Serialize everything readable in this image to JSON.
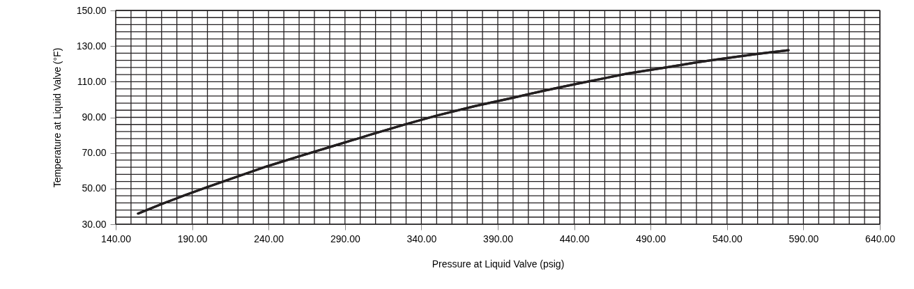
{
  "chart_data": {
    "type": "line",
    "xlabel": "Pressure at Liquid Valve (psig)",
    "ylabel": "Temperature at Liquid Valve (°F)",
    "x": [
      154.6,
      170,
      185,
      199.8,
      220,
      239,
      260,
      285,
      306.1,
      330,
      350,
      375,
      400,
      420,
      440,
      460,
      474.9,
      500,
      520,
      540.1,
      560,
      580.2
    ],
    "series": [
      {
        "color": "#231f20",
        "values": [
          36.0,
          41.3,
          46.2,
          50.8,
          56.9,
          62.5,
          68.1,
          74.6,
          80.1,
          86.2,
          91.0,
          96.3,
          101.0,
          104.9,
          108.5,
          112.0,
          114.6,
          118.0,
          120.8,
          123.3,
          125.6,
          127.7
        ]
      }
    ],
    "xlim": [
      140,
      640
    ],
    "xticks": [
      {
        "value": 140,
        "label": "140.00"
      },
      {
        "value": 150,
        "label": null
      },
      {
        "value": 160,
        "label": null
      },
      {
        "value": 170,
        "label": null
      },
      {
        "value": 180,
        "label": null
      },
      {
        "value": 190,
        "label": "190.00"
      },
      {
        "value": 200,
        "label": null
      },
      {
        "value": 210,
        "label": null
      },
      {
        "value": 220,
        "label": null
      },
      {
        "value": 230,
        "label": null
      },
      {
        "value": 240,
        "label": "240.00"
      },
      {
        "value": 250,
        "label": null
      },
      {
        "value": 260,
        "label": null
      },
      {
        "value": 270,
        "label": null
      },
      {
        "value": 280,
        "label": null
      },
      {
        "value": 290,
        "label": "290.00"
      },
      {
        "value": 300,
        "label": null
      },
      {
        "value": 310,
        "label": null
      },
      {
        "value": 320,
        "label": null
      },
      {
        "value": 330,
        "label": null
      },
      {
        "value": 340,
        "label": "340.00"
      },
      {
        "value": 350,
        "label": null
      },
      {
        "value": 360,
        "label": null
      },
      {
        "value": 370,
        "label": null
      },
      {
        "value": 380,
        "label": null
      },
      {
        "value": 390,
        "label": "390.00"
      },
      {
        "value": 400,
        "label": null
      },
      {
        "value": 410,
        "label": null
      },
      {
        "value": 420,
        "label": null
      },
      {
        "value": 430,
        "label": null
      },
      {
        "value": 440,
        "label": "440.00"
      },
      {
        "value": 450,
        "label": null
      },
      {
        "value": 460,
        "label": null
      },
      {
        "value": 470,
        "label": null
      },
      {
        "value": 480,
        "label": null
      },
      {
        "value": 490,
        "label": "490.00"
      },
      {
        "value": 500,
        "label": null
      },
      {
        "value": 510,
        "label": null
      },
      {
        "value": 520,
        "label": null
      },
      {
        "value": 530,
        "label": null
      },
      {
        "value": 540,
        "label": "540.00"
      },
      {
        "value": 550,
        "label": null
      },
      {
        "value": 560,
        "label": null
      },
      {
        "value": 570,
        "label": null
      },
      {
        "value": 580,
        "label": null
      },
      {
        "value": 590,
        "label": "590.00"
      },
      {
        "value": 600,
        "label": null
      },
      {
        "value": 610,
        "label": null
      },
      {
        "value": 620,
        "label": null
      },
      {
        "value": 630,
        "label": null
      },
      {
        "value": 640,
        "label": "640.00"
      }
    ],
    "ylim": [
      30,
      150
    ],
    "yticks": [
      {
        "value": 30,
        "label": "30.00"
      },
      {
        "value": 34,
        "label": null
      },
      {
        "value": 38,
        "label": null
      },
      {
        "value": 42,
        "label": null
      },
      {
        "value": 46,
        "label": null
      },
      {
        "value": 50,
        "label": "50.00"
      },
      {
        "value": 54,
        "label": null
      },
      {
        "value": 58,
        "label": null
      },
      {
        "value": 62,
        "label": null
      },
      {
        "value": 66,
        "label": null
      },
      {
        "value": 70,
        "label": "70.00"
      },
      {
        "value": 74,
        "label": null
      },
      {
        "value": 78,
        "label": null
      },
      {
        "value": 82,
        "label": null
      },
      {
        "value": 86,
        "label": null
      },
      {
        "value": 90,
        "label": "90.00"
      },
      {
        "value": 94,
        "label": null
      },
      {
        "value": 98,
        "label": null
      },
      {
        "value": 102,
        "label": null
      },
      {
        "value": 106,
        "label": null
      },
      {
        "value": 110,
        "label": "110.00"
      },
      {
        "value": 114,
        "label": null
      },
      {
        "value": 118,
        "label": null
      },
      {
        "value": 122,
        "label": null
      },
      {
        "value": 126,
        "label": null
      },
      {
        "value": 130,
        "label": "130.00"
      },
      {
        "value": 134,
        "label": null
      },
      {
        "value": 138,
        "label": null
      },
      {
        "value": 142,
        "label": null
      },
      {
        "value": 146,
        "label": null
      },
      {
        "value": 150,
        "label": "150.00"
      }
    ],
    "grid": true,
    "marker": "none",
    "line_style": "solid"
  }
}
